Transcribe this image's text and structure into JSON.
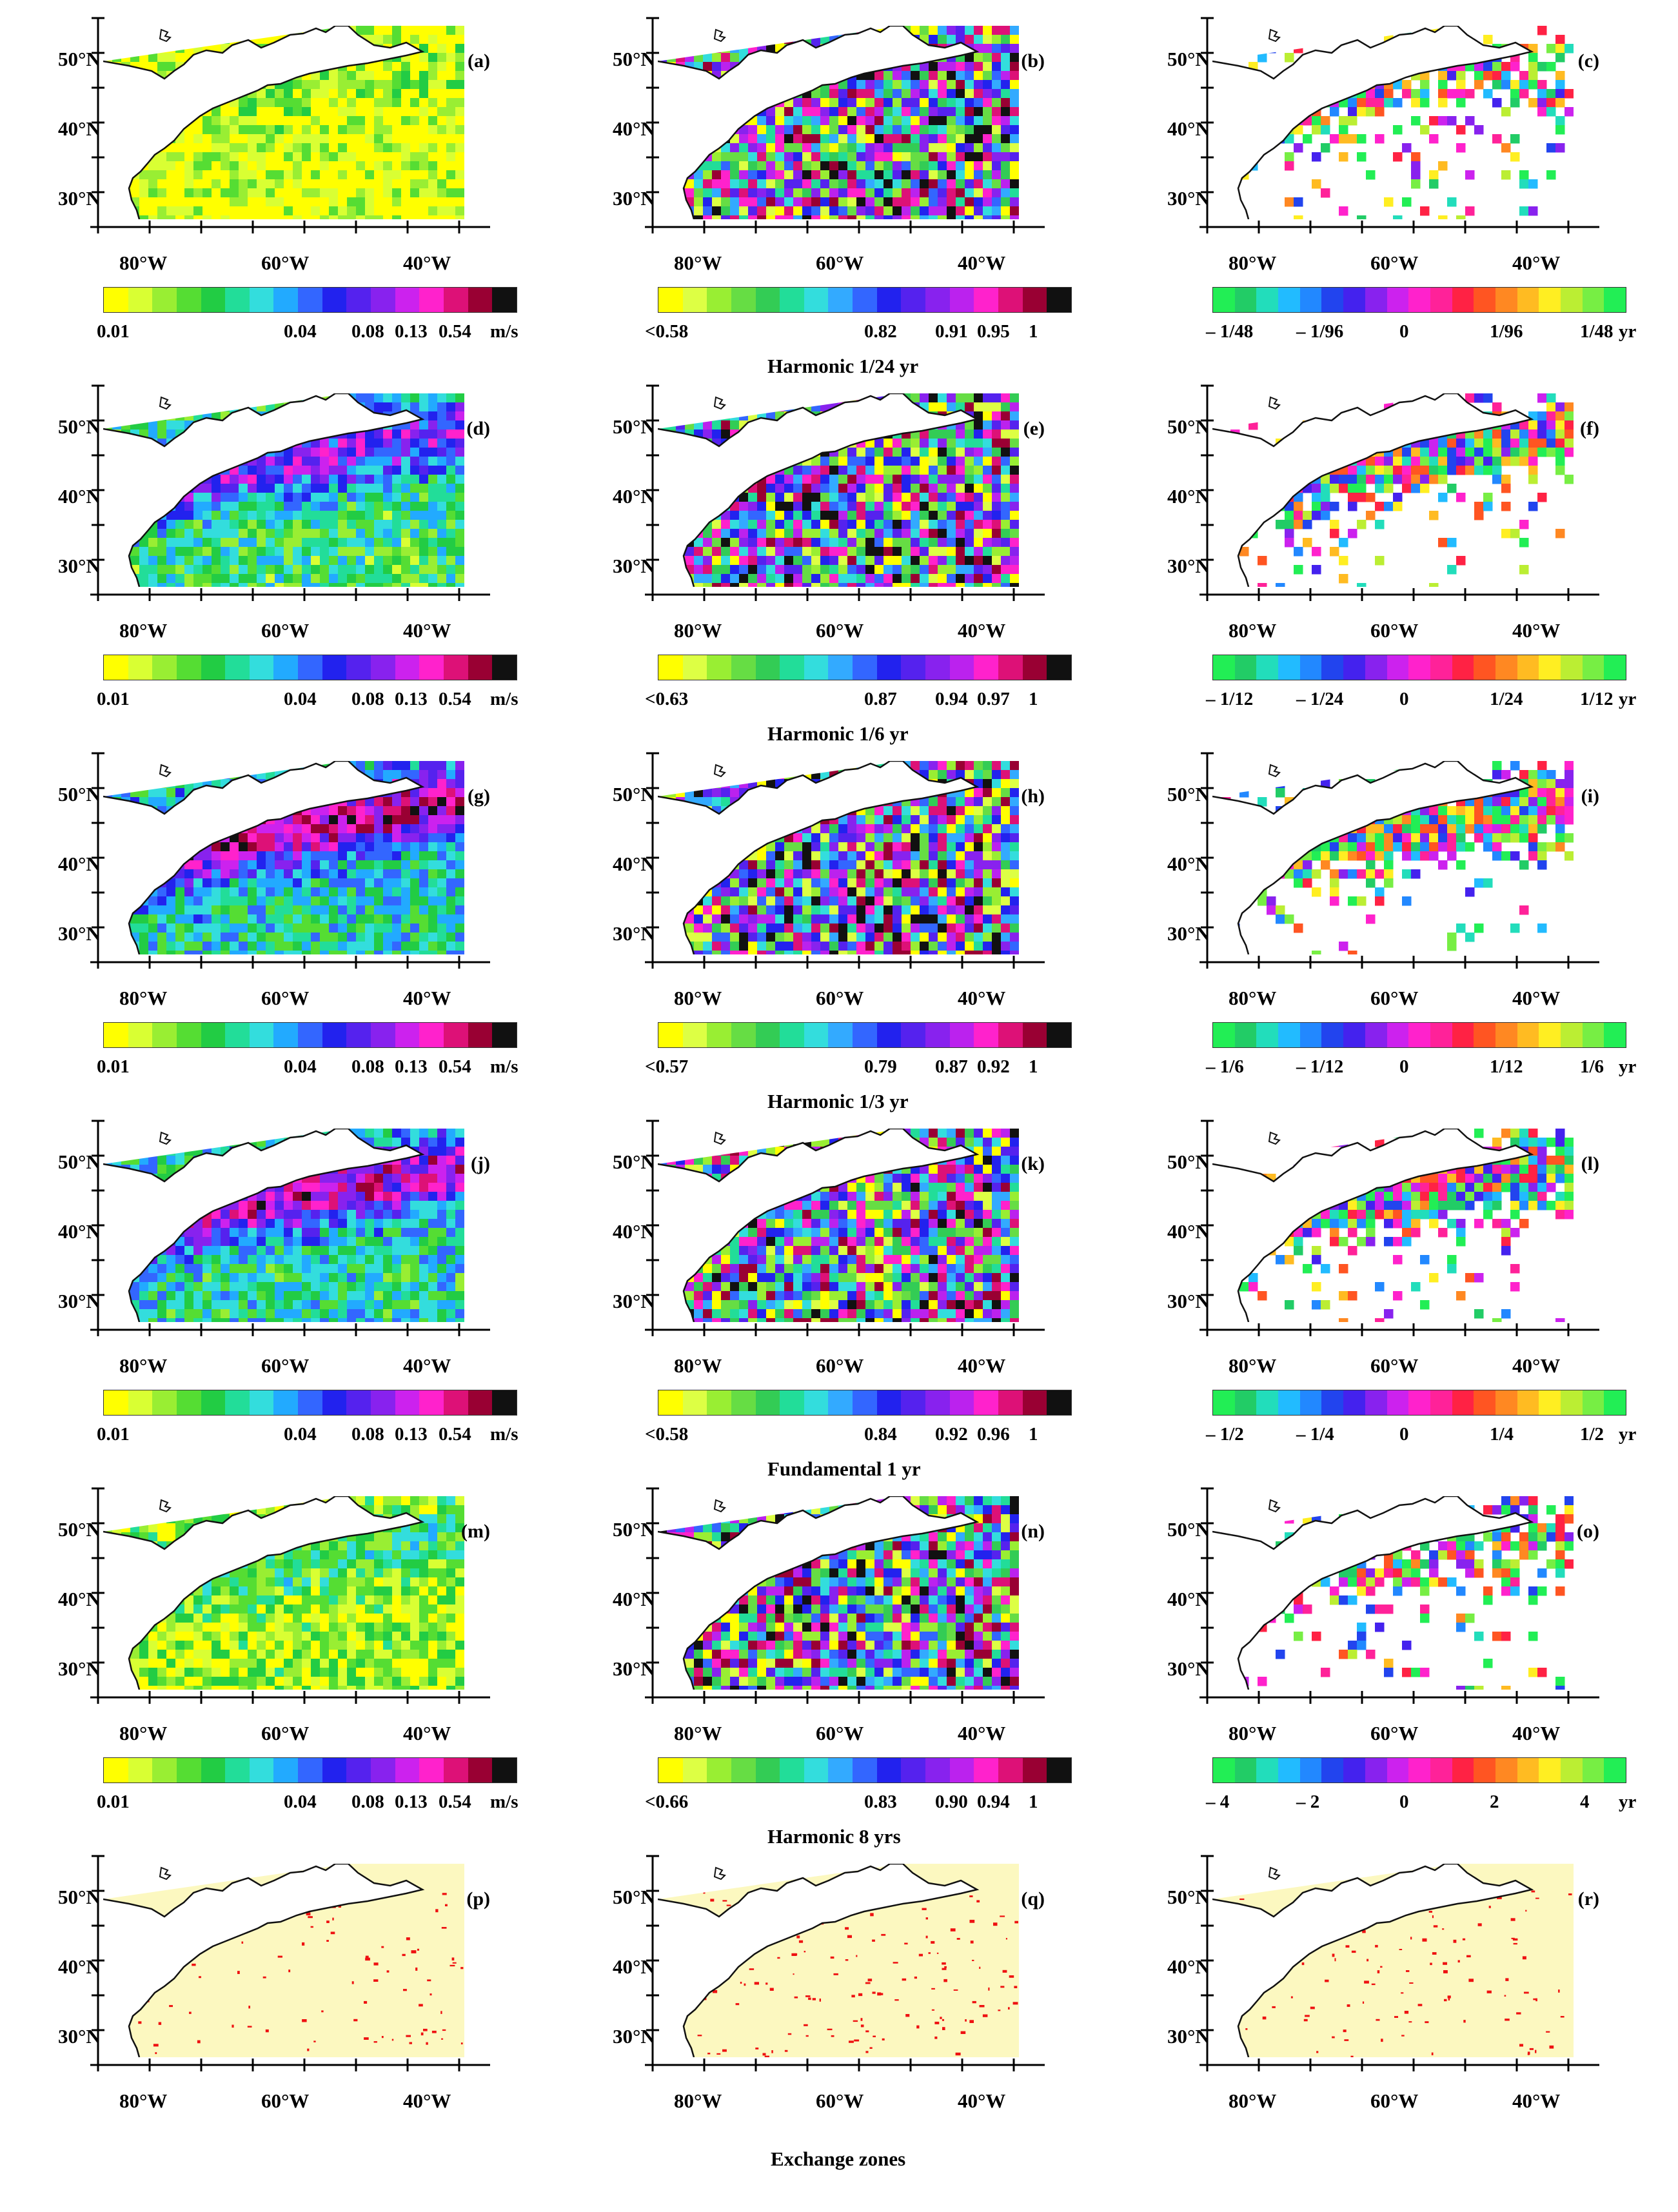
{
  "colors": {
    "amplitude_scale": [
      "#ffff00",
      "#d9ff33",
      "#99ee33",
      "#55dd33",
      "#22cc44",
      "#22dd99",
      "#33dddd",
      "#22aaff",
      "#3366ff",
      "#2222ee",
      "#5522ee",
      "#8822ee",
      "#cc22ee",
      "#ff22cc",
      "#dd1177",
      "#990033",
      "#111111"
    ],
    "coherence_scale": [
      "#ffff00",
      "#ddff44",
      "#99ee33",
      "#66dd44",
      "#33cc55",
      "#22dd99",
      "#33dddd",
      "#33aaff",
      "#3366ff",
      "#2222ee",
      "#5522ee",
      "#8822ee",
      "#bb22ee",
      "#ff22cc",
      "#dd1177",
      "#990033",
      "#111111"
    ],
    "lag_scale": [
      "#22ee55",
      "#22cc66",
      "#22ddbb",
      "#22bbff",
      "#2288ff",
      "#2244ee",
      "#4422ee",
      "#8822ee",
      "#cc22ee",
      "#ff22cc",
      "#ff2299",
      "#ff2244",
      "#ff5522",
      "#ff8822",
      "#ffbb22",
      "#ffee22",
      "#bbee33",
      "#77ee44",
      "#22ee55"
    ],
    "exchange_bg": "#fcf8c0",
    "exchange_dot": "#ee1111",
    "land": "#ffffff",
    "coastline": "#111111"
  },
  "axes": {
    "lat_labels": [
      "50°N",
      "40°N",
      "30°N"
    ],
    "lon_labels": [
      "80°W",
      "60°W",
      "40°W"
    ]
  },
  "panels": [
    {
      "label": "(a)",
      "kind": "amp",
      "level": 0.1
    },
    {
      "label": "(b)",
      "kind": "coh",
      "level": 0.5
    },
    {
      "label": "(c)",
      "kind": "lag",
      "level": 0.2
    },
    {
      "label": "(d)",
      "kind": "amp",
      "level": 0.55
    },
    {
      "label": "(e)",
      "kind": "coh",
      "level": 0.6
    },
    {
      "label": "(f)",
      "kind": "lag",
      "level": 0.6
    },
    {
      "label": "(g)",
      "kind": "amp",
      "level": 0.7
    },
    {
      "label": "(h)",
      "kind": "coh",
      "level": 0.6
    },
    {
      "label": "(i)",
      "kind": "lag",
      "level": 0.7
    },
    {
      "label": "(j)",
      "kind": "amp",
      "level": 0.65
    },
    {
      "label": "(k)",
      "kind": "coh",
      "level": 0.55
    },
    {
      "label": "(l)",
      "kind": "lag",
      "level": 0.65
    },
    {
      "label": "(m)",
      "kind": "amp",
      "level": 0.25
    },
    {
      "label": "(n)",
      "kind": "coh",
      "level": 0.55
    },
    {
      "label": "(o)",
      "kind": "lag",
      "level": 0.25
    },
    {
      "label": "(p)",
      "kind": "ex",
      "level": 0.15
    },
    {
      "label": "(q)",
      "kind": "ex",
      "level": 0.35
    },
    {
      "label": "(r)",
      "kind": "ex",
      "level": 0.2
    }
  ],
  "rows": [
    {
      "amp_ticks": [
        "0.01",
        "0.04",
        "0.08",
        "0.13",
        "0.54",
        "m/s"
      ],
      "coh_ticks": [
        "<0.58",
        "0.82",
        "0.91",
        "0.95",
        "1"
      ],
      "lag_ticks": [
        "– 1/48",
        "– 1/96",
        "0",
        "1/96",
        "1/48",
        "yr"
      ],
      "caption": "Harmonic 1/24 yr"
    },
    {
      "amp_ticks": [
        "0.01",
        "0.04",
        "0.08",
        "0.13",
        "0.54",
        "m/s"
      ],
      "coh_ticks": [
        "<0.63",
        "0.87",
        "0.94",
        "0.97",
        "1"
      ],
      "lag_ticks": [
        "– 1/12",
        "– 1/24",
        "0",
        "1/24",
        "1/12",
        "yr"
      ],
      "caption": "Harmonic  1/6  yr"
    },
    {
      "amp_ticks": [
        "0.01",
        "0.04",
        "0.08",
        "0.13",
        "0.54",
        "m/s"
      ],
      "coh_ticks": [
        "<0.57",
        "0.79",
        "0.87",
        "0.92",
        "1"
      ],
      "lag_ticks": [
        "– 1/6",
        "– 1/12",
        "0",
        "1/12",
        "1/6",
        "yr"
      ],
      "caption": "Harmonic  1/3  yr"
    },
    {
      "amp_ticks": [
        "0.01",
        "0.04",
        "0.08",
        "0.13",
        "0.54",
        "m/s"
      ],
      "coh_ticks": [
        "<0.58",
        "0.84",
        "0.92",
        "0.96",
        "1"
      ],
      "lag_ticks": [
        "– 1/2",
        "– 1/4",
        "0",
        "1/4",
        "1/2",
        "yr"
      ],
      "caption": "Fundamental  1 yr"
    },
    {
      "amp_ticks": [
        "0.01",
        "0.04",
        "0.08",
        "0.13",
        "0.54",
        "m/s"
      ],
      "coh_ticks": [
        "<0.66",
        "0.83",
        "0.90",
        "0.94",
        "1"
      ],
      "lag_ticks": [
        "– 4",
        "– 2",
        "0",
        "2",
        "4",
        "yr"
      ],
      "caption": "Harmonic  8 yrs"
    }
  ],
  "bottom_caption": "Exchange zones"
}
